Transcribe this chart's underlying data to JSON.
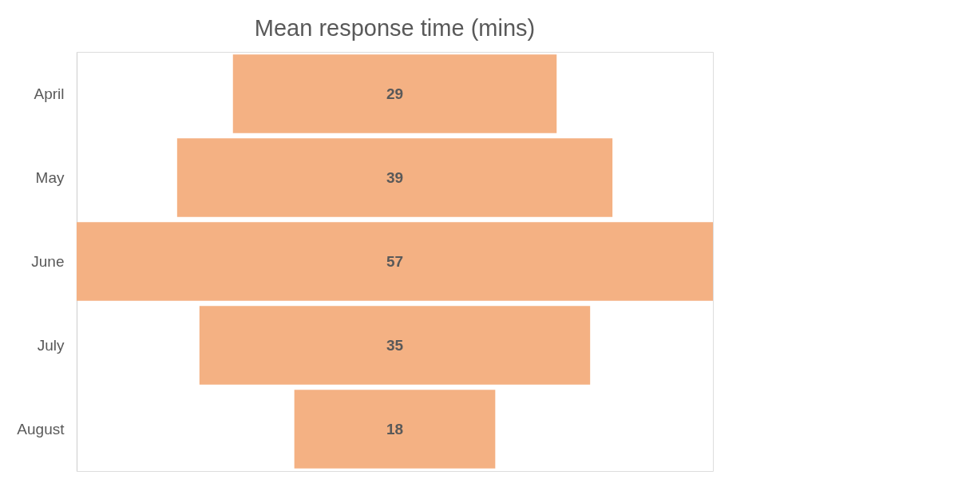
{
  "chart_data": {
    "type": "other",
    "title": "Mean response time (mins)",
    "categories": [
      "April",
      "May",
      "June",
      "July",
      "August"
    ],
    "values": [
      29,
      39,
      57,
      35,
      18
    ],
    "color": "#f4b183",
    "data_labels": true
  }
}
